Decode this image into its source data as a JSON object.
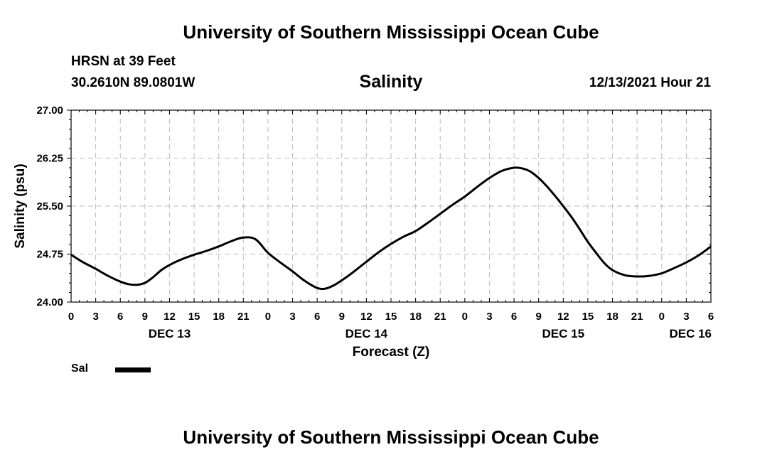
{
  "header": {
    "title": "University of Southern Mississippi Ocean Cube",
    "station": "HRSN at 39 Feet",
    "coords": "30.2610N  89.0801W",
    "chart_title": "Salinity",
    "datetime": "12/13/2021 Hour 21"
  },
  "footer": {
    "title": "University of Southern Mississippi Ocean Cube"
  },
  "legend": {
    "label": "Sal",
    "color": "#000000"
  },
  "chart_data": {
    "type": "line",
    "title": "Salinity",
    "xlabel": "Forecast (Z)",
    "ylabel": "Salinity (psu)",
    "xlim": [
      0,
      78
    ],
    "ylim": [
      24.0,
      27.0
    ],
    "yticks": [
      "24.00",
      "24.75",
      "25.50",
      "26.25",
      "27.00"
    ],
    "xtick_labels": [
      "0",
      "3",
      "6",
      "9",
      "12",
      "15",
      "18",
      "21",
      "0",
      "3",
      "6",
      "9",
      "12",
      "15",
      "18",
      "21",
      "0",
      "3",
      "6",
      "9",
      "12",
      "15",
      "18",
      "21",
      "0",
      "3",
      "6"
    ],
    "date_labels": [
      {
        "label": "DEC 13",
        "hour": 12
      },
      {
        "label": "DEC 14",
        "hour": 36
      },
      {
        "label": "DEC 15",
        "hour": 60
      },
      {
        "label": "DEC 16",
        "hour": 78
      }
    ],
    "grid": true,
    "series": [
      {
        "name": "Sal",
        "x": [
          0,
          1.5,
          3,
          4.5,
          6,
          7,
          8,
          9,
          10,
          11,
          12,
          13.5,
          15,
          16.5,
          18,
          19.5,
          21,
          22.5,
          24,
          25.5,
          27,
          28.5,
          30,
          31,
          32,
          33,
          34,
          35,
          36,
          37.5,
          39,
          40.5,
          42,
          43.5,
          45,
          46.5,
          48,
          49.5,
          51,
          52.5,
          54,
          55,
          56,
          57,
          58,
          59,
          60,
          61,
          62,
          63,
          64,
          65,
          66,
          67.5,
          69,
          70.5,
          72,
          73.5,
          75,
          76.5,
          78
        ],
        "values": [
          24.74,
          24.62,
          24.52,
          24.41,
          24.32,
          24.28,
          24.27,
          24.3,
          24.39,
          24.5,
          24.58,
          24.67,
          24.74,
          24.8,
          24.87,
          24.95,
          25.01,
          24.98,
          24.77,
          24.62,
          24.48,
          24.33,
          24.22,
          24.21,
          24.26,
          24.34,
          24.43,
          24.53,
          24.63,
          24.78,
          24.91,
          25.02,
          25.11,
          25.24,
          25.38,
          25.52,
          25.65,
          25.8,
          25.94,
          26.05,
          26.1,
          26.09,
          26.04,
          25.94,
          25.81,
          25.66,
          25.5,
          25.33,
          25.14,
          24.94,
          24.77,
          24.61,
          24.5,
          24.42,
          24.4,
          24.41,
          24.45,
          24.53,
          24.62,
          24.73,
          24.87
        ]
      }
    ]
  }
}
